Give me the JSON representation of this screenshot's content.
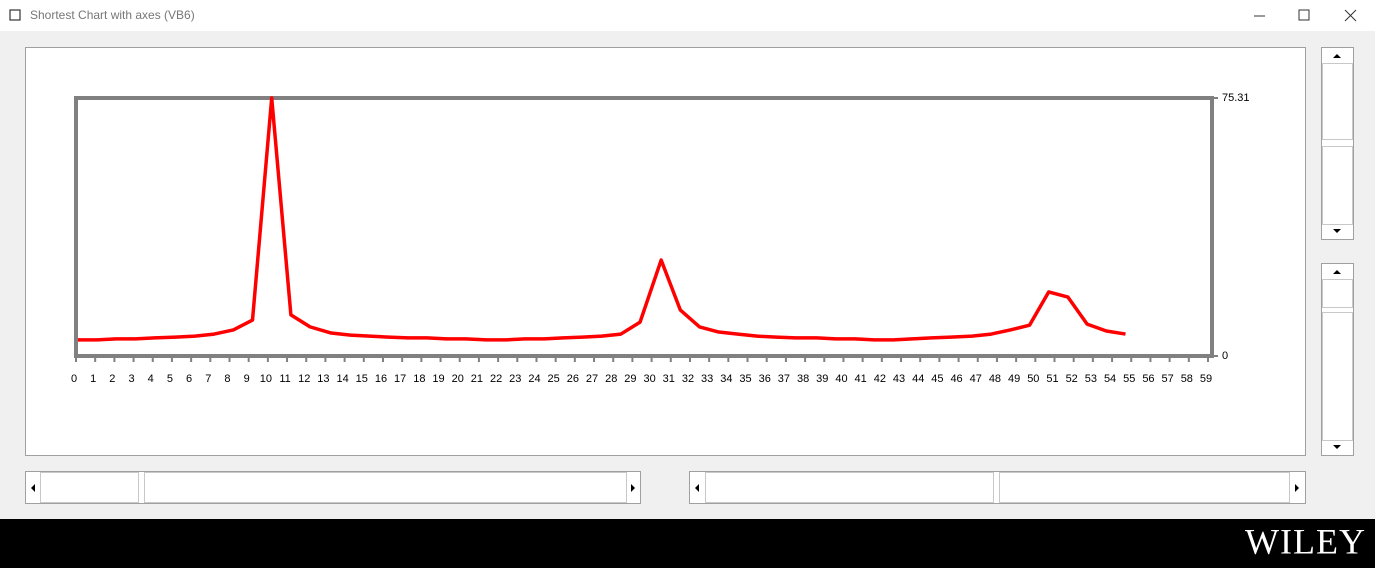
{
  "window": {
    "title": "Shortest Chart with axes (VB6)"
  },
  "chart_data": {
    "type": "line",
    "x": [
      0.1,
      1.1,
      2.1,
      3.1,
      4.1,
      5.2,
      6.2,
      7.2,
      8.2,
      9.2,
      10.2,
      11.2,
      12.2,
      13.3,
      14.3,
      15.3,
      16.3,
      17.3,
      18.3,
      19.3,
      20.3,
      21.4,
      22.4,
      23.4,
      24.4,
      25.4,
      26.4,
      27.4,
      28.4,
      29.4,
      30.5,
      31.5,
      32.5,
      33.5,
      34.5,
      35.5,
      36.5,
      37.5,
      38.6,
      39.6,
      40.6,
      41.6,
      42.6,
      43.6,
      44.6,
      45.6,
      46.7,
      47.7,
      48.7,
      49.7,
      50.7,
      51.7,
      52.7,
      53.7,
      54.7
    ],
    "series": [
      {
        "color": "#ff0000",
        "values": [
          4.7,
          4.7,
          5.0,
          5.0,
          5.3,
          5.5,
          5.8,
          6.4,
          7.6,
          10.5,
          75.31,
          12.0,
          8.5,
          6.7,
          6.1,
          5.8,
          5.5,
          5.3,
          5.3,
          5.0,
          5.0,
          4.7,
          4.7,
          5.0,
          5.0,
          5.3,
          5.5,
          5.8,
          6.4,
          9.9,
          28.0,
          13.4,
          8.5,
          7.0,
          6.4,
          5.8,
          5.5,
          5.3,
          5.3,
          5.0,
          5.0,
          4.7,
          4.7,
          5.0,
          5.3,
          5.5,
          5.8,
          6.4,
          7.6,
          9.0,
          18.7,
          17.2,
          9.3,
          7.3,
          6.4
        ]
      }
    ],
    "xlim": [
      0,
      59
    ],
    "xticks": [
      0,
      1,
      2,
      3,
      4,
      5,
      6,
      7,
      8,
      9,
      10,
      11,
      12,
      13,
      14,
      15,
      16,
      17,
      18,
      19,
      20,
      21,
      22,
      23,
      24,
      25,
      26,
      27,
      28,
      29,
      30,
      31,
      32,
      33,
      34,
      35,
      36,
      37,
      38,
      39,
      40,
      41,
      42,
      43,
      44,
      45,
      46,
      47,
      48,
      49,
      50,
      51,
      52,
      53,
      54,
      55,
      56,
      57,
      58,
      59
    ],
    "ylim": [
      0,
      75.31
    ],
    "yticks": [
      0,
      75.31
    ],
    "grid": false
  },
  "footer": {
    "brand": "WILEY"
  }
}
